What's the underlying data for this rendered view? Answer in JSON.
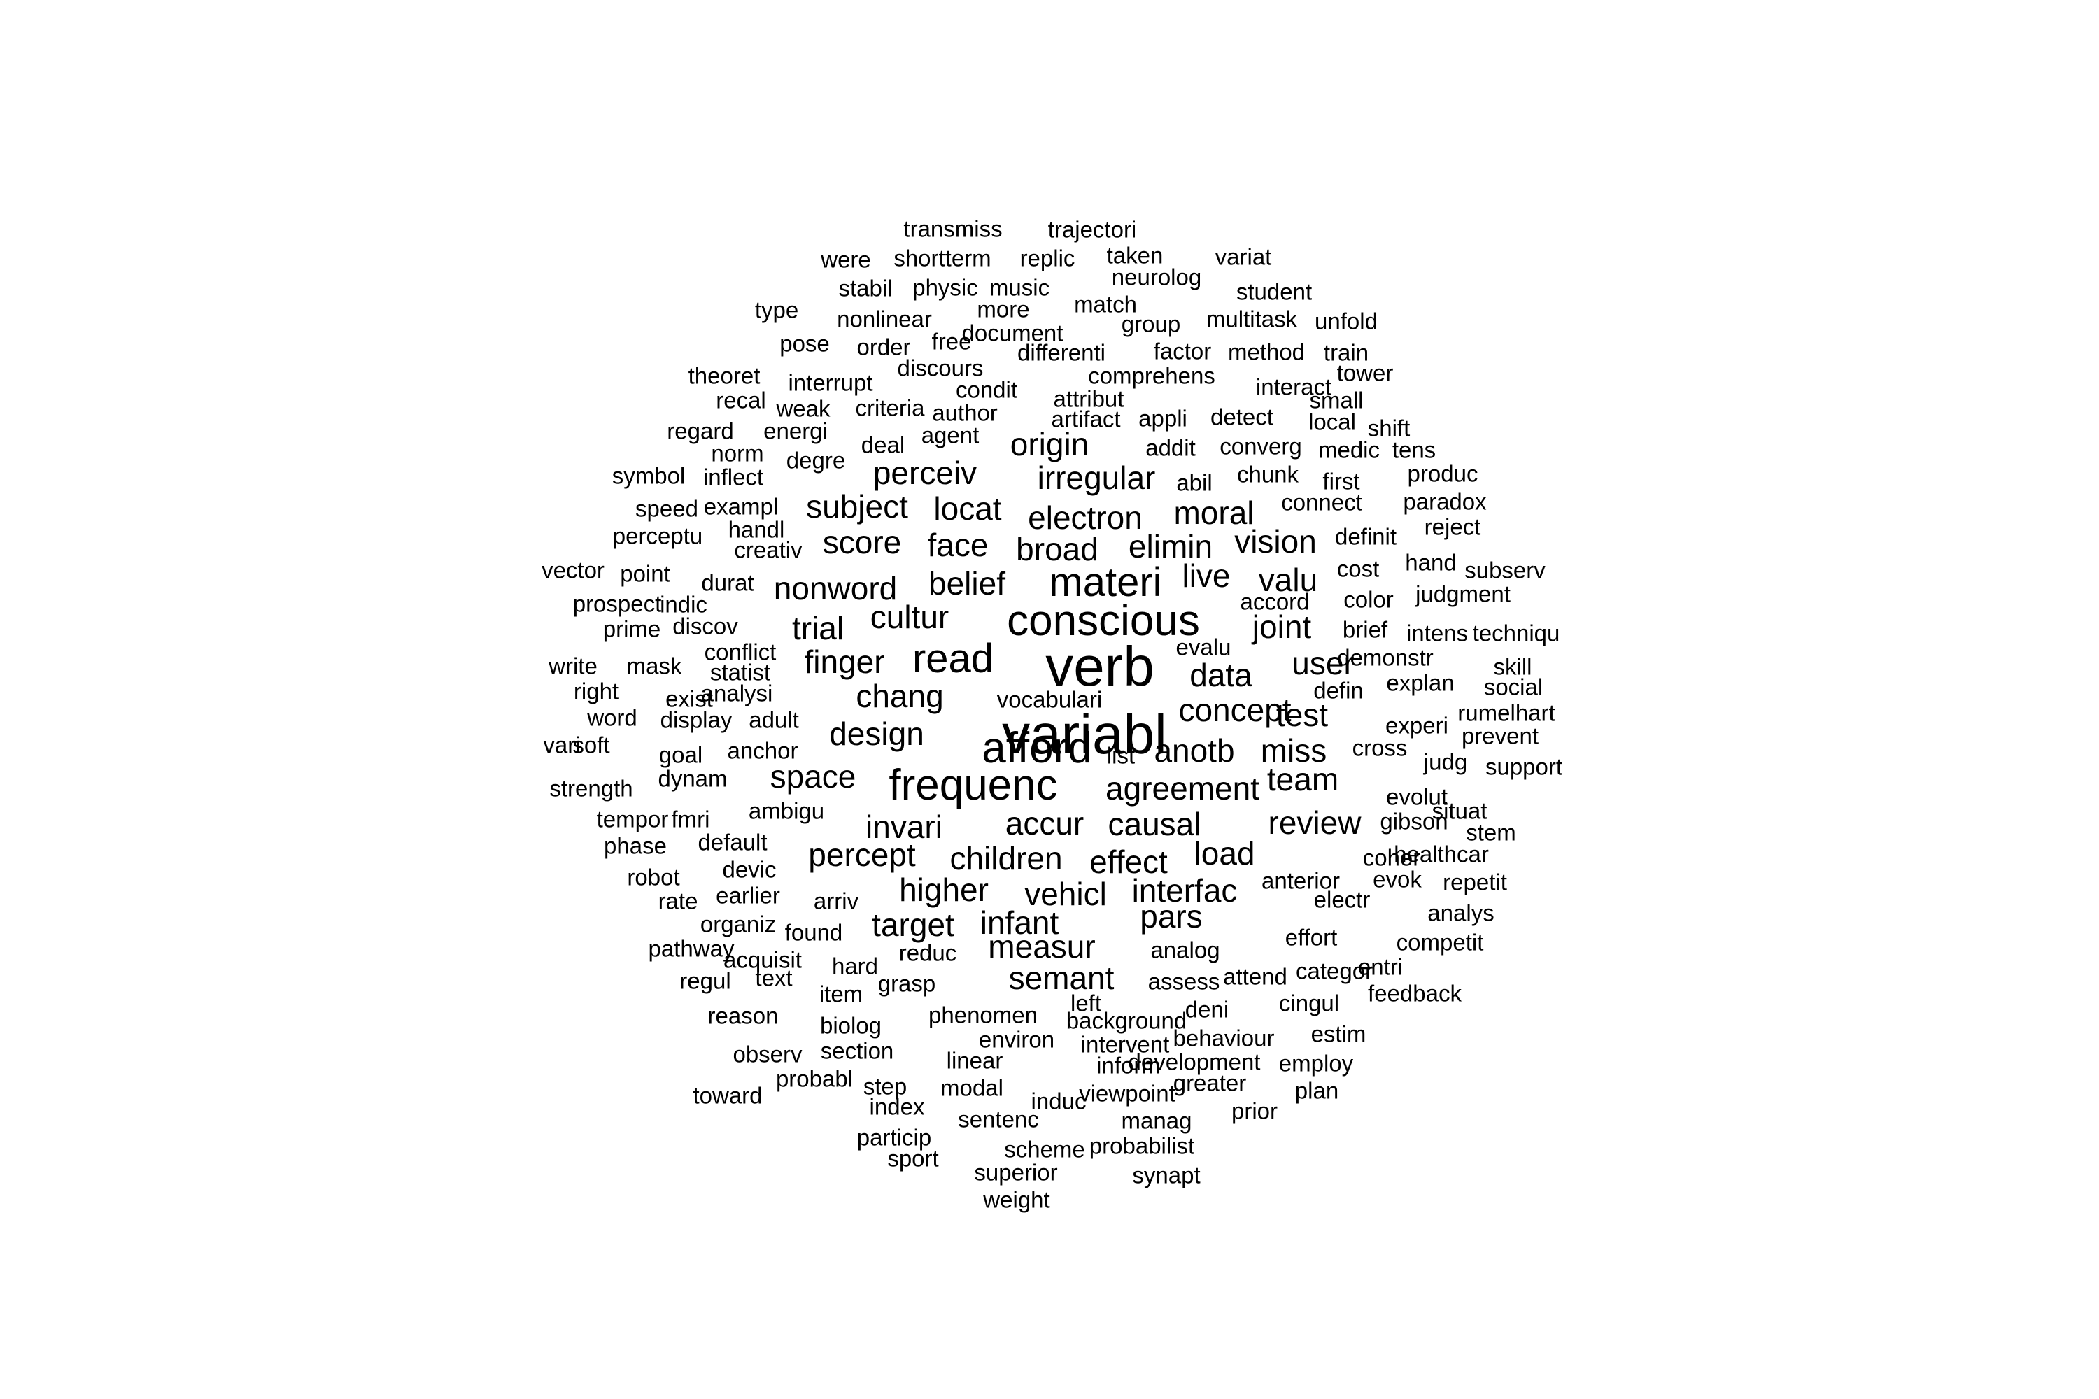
{
  "word_cloud": {
    "text_color": "#000000",
    "background_color": "#ffffff",
    "words": [
      {
        "text": "variabl",
        "size": 80
      },
      {
        "text": "verb",
        "size": 80
      },
      {
        "text": "conscious",
        "size": 62
      },
      {
        "text": "afford",
        "size": 62
      },
      {
        "text": "frequenc",
        "size": 62
      },
      {
        "text": "materi",
        "size": 58
      },
      {
        "text": "read",
        "size": 58
      },
      {
        "text": "agreement",
        "size": 46
      },
      {
        "text": "design",
        "size": 46
      },
      {
        "text": "concept",
        "size": 46
      },
      {
        "text": "anotb",
        "size": 46
      },
      {
        "text": "miss",
        "size": 46
      },
      {
        "text": "review",
        "size": 46
      },
      {
        "text": "user",
        "size": 46
      },
      {
        "text": "team",
        "size": 46
      },
      {
        "text": "chang",
        "size": 46
      },
      {
        "text": "data",
        "size": 46
      },
      {
        "text": "causal",
        "size": 46
      },
      {
        "text": "accur",
        "size": 46
      },
      {
        "text": "invari",
        "size": 46
      },
      {
        "text": "space",
        "size": 46
      },
      {
        "text": "finger",
        "size": 46
      },
      {
        "text": "test",
        "size": 46
      },
      {
        "text": "trial",
        "size": 46
      },
      {
        "text": "cultur",
        "size": 46
      },
      {
        "text": "nonword",
        "size": 46
      },
      {
        "text": "belief",
        "size": 46
      },
      {
        "text": "live",
        "size": 46
      },
      {
        "text": "valu",
        "size": 46
      },
      {
        "text": "joint",
        "size": 46
      },
      {
        "text": "score",
        "size": 46
      },
      {
        "text": "face",
        "size": 46
      },
      {
        "text": "broad",
        "size": 46
      },
      {
        "text": "elimin",
        "size": 46
      },
      {
        "text": "vision",
        "size": 46
      },
      {
        "text": "subject",
        "size": 46
      },
      {
        "text": "locat",
        "size": 46
      },
      {
        "text": "electron",
        "size": 46
      },
      {
        "text": "moral",
        "size": 46
      },
      {
        "text": "perceiv",
        "size": 46
      },
      {
        "text": "irregular",
        "size": 46
      },
      {
        "text": "origin",
        "size": 46
      },
      {
        "text": "percept",
        "size": 46
      },
      {
        "text": "children",
        "size": 46
      },
      {
        "text": "effect",
        "size": 46
      },
      {
        "text": "load",
        "size": 46
      },
      {
        "text": "higher",
        "size": 46
      },
      {
        "text": "vehicl",
        "size": 46
      },
      {
        "text": "interfac",
        "size": 46
      },
      {
        "text": "target",
        "size": 46
      },
      {
        "text": "infant",
        "size": 46
      },
      {
        "text": "pars",
        "size": 46
      },
      {
        "text": "measur",
        "size": 46
      },
      {
        "text": "semant",
        "size": 46
      },
      {
        "text": "transmiss",
        "size": 33
      },
      {
        "text": "trajectori",
        "size": 33
      },
      {
        "text": "were",
        "size": 33
      },
      {
        "text": "shortterm",
        "size": 33
      },
      {
        "text": "replic",
        "size": 33
      },
      {
        "text": "taken",
        "size": 33
      },
      {
        "text": "variat",
        "size": 33
      },
      {
        "text": "stabil",
        "size": 33
      },
      {
        "text": "physic",
        "size": 33
      },
      {
        "text": "music",
        "size": 33
      },
      {
        "text": "neurolog",
        "size": 33
      },
      {
        "text": "student",
        "size": 33
      },
      {
        "text": "type",
        "size": 33
      },
      {
        "text": "nonlinear",
        "size": 33
      },
      {
        "text": "more",
        "size": 33
      },
      {
        "text": "match",
        "size": 33
      },
      {
        "text": "group",
        "size": 33
      },
      {
        "text": "multitask",
        "size": 33
      },
      {
        "text": "unfold",
        "size": 33
      },
      {
        "text": "pose",
        "size": 33
      },
      {
        "text": "order",
        "size": 33
      },
      {
        "text": "free",
        "size": 33
      },
      {
        "text": "document",
        "size": 33
      },
      {
        "text": "differenti",
        "size": 33
      },
      {
        "text": "factor",
        "size": 33
      },
      {
        "text": "method",
        "size": 33
      },
      {
        "text": "train",
        "size": 33
      },
      {
        "text": "theoret",
        "size": 33
      },
      {
        "text": "discours",
        "size": 33
      },
      {
        "text": "comprehens",
        "size": 33
      },
      {
        "text": "tower",
        "size": 33
      },
      {
        "text": "interrupt",
        "size": 33
      },
      {
        "text": "condit",
        "size": 33
      },
      {
        "text": "interact",
        "size": 33
      },
      {
        "text": "recal",
        "size": 33
      },
      {
        "text": "weak",
        "size": 33
      },
      {
        "text": "criteria",
        "size": 33
      },
      {
        "text": "attribut",
        "size": 33
      },
      {
        "text": "small",
        "size": 33
      },
      {
        "text": "author",
        "size": 33
      },
      {
        "text": "artifact",
        "size": 33
      },
      {
        "text": "appli",
        "size": 33
      },
      {
        "text": "detect",
        "size": 33
      },
      {
        "text": "local",
        "size": 33
      },
      {
        "text": "shift",
        "size": 33
      },
      {
        "text": "regard",
        "size": 33
      },
      {
        "text": "energi",
        "size": 33
      },
      {
        "text": "agent",
        "size": 33
      },
      {
        "text": "deal",
        "size": 33
      },
      {
        "text": "addit",
        "size": 33
      },
      {
        "text": "converg",
        "size": 33
      },
      {
        "text": "medic",
        "size": 33
      },
      {
        "text": "tens",
        "size": 33
      },
      {
        "text": "norm",
        "size": 33
      },
      {
        "text": "degre",
        "size": 33
      },
      {
        "text": "chunk",
        "size": 33
      },
      {
        "text": "produc",
        "size": 33
      },
      {
        "text": "symbol",
        "size": 33
      },
      {
        "text": "inflect",
        "size": 33
      },
      {
        "text": "abil",
        "size": 33
      },
      {
        "text": "first",
        "size": 33
      },
      {
        "text": "speed",
        "size": 33
      },
      {
        "text": "exampl",
        "size": 33
      },
      {
        "text": "connect",
        "size": 33
      },
      {
        "text": "paradox",
        "size": 33
      },
      {
        "text": "handl",
        "size": 33
      },
      {
        "text": "reject",
        "size": 33
      },
      {
        "text": "perceptu",
        "size": 33
      },
      {
        "text": "creativ",
        "size": 33
      },
      {
        "text": "definit",
        "size": 33
      },
      {
        "text": "vector",
        "size": 33
      },
      {
        "text": "point",
        "size": 33
      },
      {
        "text": "cost",
        "size": 33
      },
      {
        "text": "hand",
        "size": 33
      },
      {
        "text": "subserv",
        "size": 33
      },
      {
        "text": "durat",
        "size": 33
      },
      {
        "text": "accord",
        "size": 33
      },
      {
        "text": "prospect",
        "size": 33
      },
      {
        "text": "indic",
        "size": 33
      },
      {
        "text": "color",
        "size": 33
      },
      {
        "text": "judgment",
        "size": 33
      },
      {
        "text": "prime",
        "size": 33
      },
      {
        "text": "discov",
        "size": 33
      },
      {
        "text": "brief",
        "size": 33
      },
      {
        "text": "intens",
        "size": 33
      },
      {
        "text": "techniqu",
        "size": 33
      },
      {
        "text": "conflict",
        "size": 33
      },
      {
        "text": "evalu",
        "size": 33
      },
      {
        "text": "write",
        "size": 33
      },
      {
        "text": "mask",
        "size": 33
      },
      {
        "text": "statist",
        "size": 33
      },
      {
        "text": "demonstr",
        "size": 33
      },
      {
        "text": "skill",
        "size": 33
      },
      {
        "text": "right",
        "size": 33
      },
      {
        "text": "analysi",
        "size": 33
      },
      {
        "text": "explan",
        "size": 33
      },
      {
        "text": "social",
        "size": 33
      },
      {
        "text": "exist",
        "size": 33
      },
      {
        "text": "defin",
        "size": 33
      },
      {
        "text": "word",
        "size": 33
      },
      {
        "text": "display",
        "size": 33
      },
      {
        "text": "adult",
        "size": 33
      },
      {
        "text": "rumelhart",
        "size": 33
      },
      {
        "text": "experi",
        "size": 33
      },
      {
        "text": "prevent",
        "size": 33
      },
      {
        "text": "vari",
        "size": 33
      },
      {
        "text": "soft",
        "size": 33
      },
      {
        "text": "goal",
        "size": 33
      },
      {
        "text": "anchor",
        "size": 33
      },
      {
        "text": "list",
        "size": 33
      },
      {
        "text": "cross",
        "size": 33
      },
      {
        "text": "judg",
        "size": 33
      },
      {
        "text": "support",
        "size": 33
      },
      {
        "text": "dynam",
        "size": 33
      },
      {
        "text": "strength",
        "size": 33
      },
      {
        "text": "evolut",
        "size": 33
      },
      {
        "text": "ambigu",
        "size": 33
      },
      {
        "text": "situat",
        "size": 33
      },
      {
        "text": "tempor",
        "size": 33
      },
      {
        "text": "fmri",
        "size": 33
      },
      {
        "text": "gibson",
        "size": 33
      },
      {
        "text": "stem",
        "size": 33
      },
      {
        "text": "default",
        "size": 33
      },
      {
        "text": "phase",
        "size": 33
      },
      {
        "text": "coher",
        "size": 33
      },
      {
        "text": "healthcar",
        "size": 33
      },
      {
        "text": "devic",
        "size": 33
      },
      {
        "text": "robot",
        "size": 33
      },
      {
        "text": "anterior",
        "size": 33
      },
      {
        "text": "evok",
        "size": 33
      },
      {
        "text": "repetit",
        "size": 33
      },
      {
        "text": "earlier",
        "size": 33
      },
      {
        "text": "rate",
        "size": 33
      },
      {
        "text": "arriv",
        "size": 33
      },
      {
        "text": "electr",
        "size": 33
      },
      {
        "text": "analys",
        "size": 33
      },
      {
        "text": "organiz",
        "size": 33
      },
      {
        "text": "found",
        "size": 33
      },
      {
        "text": "effort",
        "size": 33
      },
      {
        "text": "competit",
        "size": 33
      },
      {
        "text": "pathway",
        "size": 33
      },
      {
        "text": "reduc",
        "size": 33
      },
      {
        "text": "analog",
        "size": 33
      },
      {
        "text": "acquisit",
        "size": 33
      },
      {
        "text": "hard",
        "size": 33
      },
      {
        "text": "entri",
        "size": 33
      },
      {
        "text": "regul",
        "size": 33
      },
      {
        "text": "text",
        "size": 33
      },
      {
        "text": "grasp",
        "size": 33
      },
      {
        "text": "assess",
        "size": 33
      },
      {
        "text": "attend",
        "size": 33
      },
      {
        "text": "categor",
        "size": 33
      },
      {
        "text": "item",
        "size": 33
      },
      {
        "text": "left",
        "size": 33
      },
      {
        "text": "deni",
        "size": 33
      },
      {
        "text": "cingul",
        "size": 33
      },
      {
        "text": "feedback",
        "size": 33
      },
      {
        "text": "reason",
        "size": 33
      },
      {
        "text": "phenomen",
        "size": 33
      },
      {
        "text": "background",
        "size": 33
      },
      {
        "text": "biolog",
        "size": 33
      },
      {
        "text": "environ",
        "size": 33
      },
      {
        "text": "behaviour",
        "size": 33
      },
      {
        "text": "estim",
        "size": 33
      },
      {
        "text": "intervent",
        "size": 33
      },
      {
        "text": "observ",
        "size": 33
      },
      {
        "text": "section",
        "size": 33
      },
      {
        "text": "linear",
        "size": 33
      },
      {
        "text": "development",
        "size": 33
      },
      {
        "text": "inform",
        "size": 33
      },
      {
        "text": "employ",
        "size": 33
      },
      {
        "text": "probabl",
        "size": 33
      },
      {
        "text": "step",
        "size": 33
      },
      {
        "text": "modal",
        "size": 33
      },
      {
        "text": "greater",
        "size": 33
      },
      {
        "text": "plan",
        "size": 33
      },
      {
        "text": "toward",
        "size": 33
      },
      {
        "text": "viewpoint",
        "size": 33
      },
      {
        "text": "induc",
        "size": 33
      },
      {
        "text": "index",
        "size": 33
      },
      {
        "text": "prior",
        "size": 33
      },
      {
        "text": "sentenc",
        "size": 33
      },
      {
        "text": "manag",
        "size": 33
      },
      {
        "text": "particip",
        "size": 33
      },
      {
        "text": "scheme",
        "size": 33
      },
      {
        "text": "probabilist",
        "size": 33
      },
      {
        "text": "sport",
        "size": 33
      },
      {
        "text": "superior",
        "size": 33
      },
      {
        "text": "synapt",
        "size": 33
      },
      {
        "text": "weight",
        "size": 33
      },
      {
        "text": "vocabulari",
        "size": 33
      }
    ]
  }
}
